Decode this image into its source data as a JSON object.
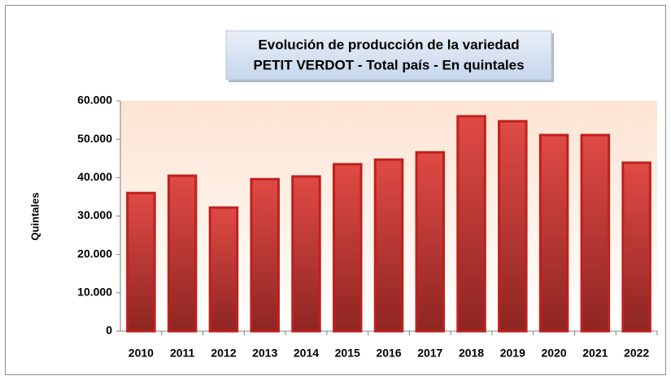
{
  "chart_data": {
    "type": "bar",
    "title": [
      "Evolución de producción de la variedad",
      "PETIT VERDOT - Total país - En quintales"
    ],
    "y_label": "Quintales",
    "categories": [
      "2010",
      "2011",
      "2012",
      "2013",
      "2014",
      "2015",
      "2016",
      "2017",
      "2018",
      "2019",
      "2020",
      "2021",
      "2022"
    ],
    "values": [
      36000,
      40500,
      32200,
      39600,
      40300,
      43500,
      44700,
      46600,
      56000,
      54700,
      51100,
      51100,
      43900
    ],
    "color": "#c0201c",
    "ylim": [
      0,
      60000
    ],
    "yticks": [
      0,
      {
        "value": 10000,
        "label": "10.000"
      },
      {
        "value": 20000,
        "label": "20.000"
      },
      {
        "value": 30000,
        "label": "30.000"
      },
      {
        "value": 40000,
        "label": "40.000"
      },
      {
        "value": 50000,
        "label": "50.000"
      },
      {
        "value": 60000,
        "label": "60.000"
      }
    ],
    "grid": false
  }
}
